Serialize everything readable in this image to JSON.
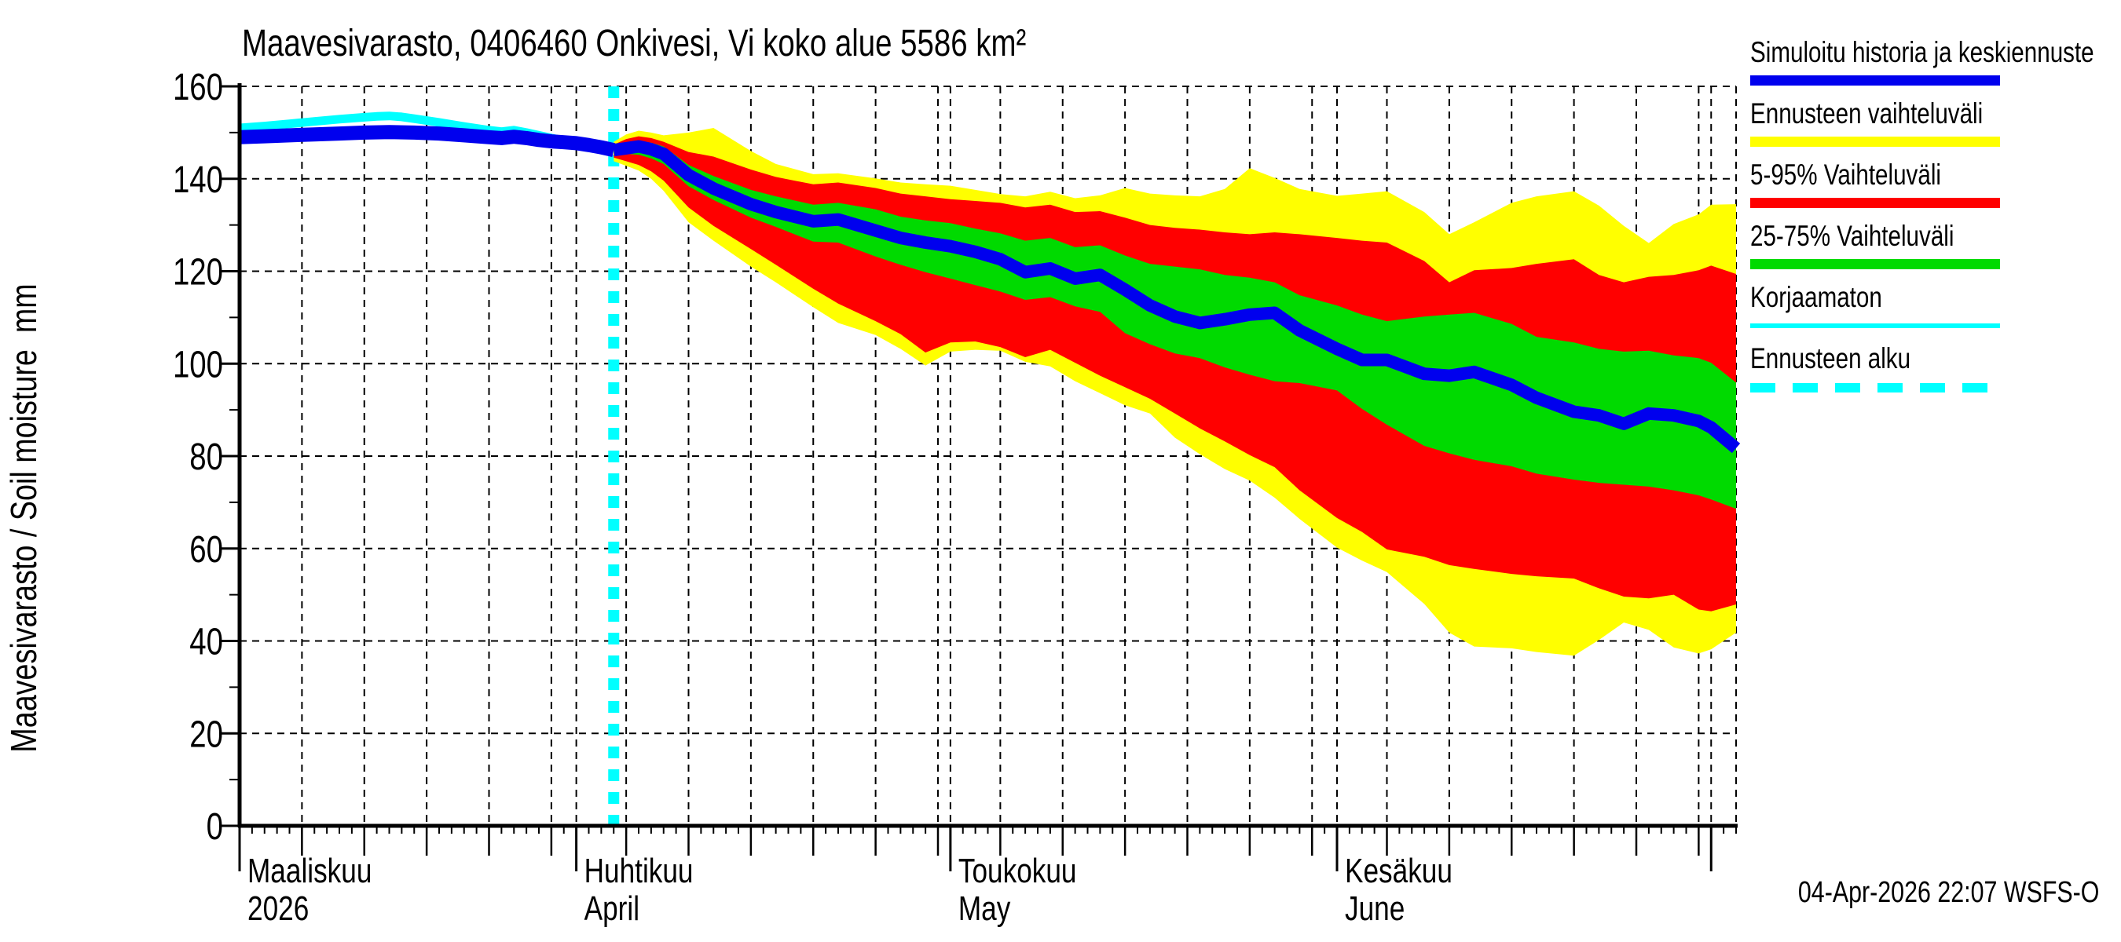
{
  "title": "Maavesivarasto, 0406460 Onkivesi, Vi koko alue 5586 km²",
  "y_axis": {
    "label": "Maavesivarasto / Soil moisture  mm"
  },
  "footer": {
    "text": "04-Apr-2026 22:07 WSFS-O"
  },
  "legend": {
    "items": [
      {
        "label": "Simuloitu historia ja keskiennuste",
        "color": "#0000ee",
        "style": "thick"
      },
      {
        "label": "Ennusteen vaihteluväli",
        "color": "#ffff00",
        "style": "thick"
      },
      {
        "label": "5-95% Vaihteluväli",
        "color": "#ff0000",
        "style": "thick"
      },
      {
        "label": "25-75% Vaihteluväli",
        "color": "#00da00",
        "style": "thick"
      },
      {
        "label": "Korjaamaton",
        "color": "#00ffff",
        "style": "thin"
      },
      {
        "label": "Ennusteen alku",
        "color": "#00ffff",
        "style": "dashed"
      }
    ]
  },
  "chart_data": {
    "type": "area",
    "title": "Maavesivarasto, 0406460 Onkivesi, Vi koko alue 5586 km²",
    "ylabel": "Maavesivarasto / Soil moisture  mm",
    "ylim": [
      0,
      160
    ],
    "y_ticks": [
      0,
      20,
      40,
      60,
      80,
      100,
      120,
      140,
      160
    ],
    "x_unit": "days since 2026-03-05",
    "x_range_days": [
      0,
      120
    ],
    "x_start_date": "2026-03-05",
    "x_end_date": "2026-07-03",
    "grid": "on",
    "legend_position": "outside-right",
    "months": [
      {
        "name_fi": "Maaliskuu",
        "name_sub": "2026",
        "day": 0
      },
      {
        "name_fi": "Huhtikuu",
        "name_sub": "April",
        "day": 27
      },
      {
        "name_fi": "Toukokuu",
        "name_sub": "May",
        "day": 57
      },
      {
        "name_fi": "Kesäkuu",
        "name_sub": "June",
        "day": 88
      }
    ],
    "x_gridline_days": [
      5,
      10,
      15,
      20,
      25,
      27,
      31,
      36,
      41,
      46,
      51,
      56,
      57,
      61,
      66,
      71,
      76,
      81,
      86,
      88,
      92,
      97,
      102,
      107,
      112,
      117,
      118,
      120
    ],
    "x_medium_tick_days": [
      5,
      10,
      15,
      20,
      25,
      31,
      36,
      41,
      46,
      51,
      56,
      61,
      66,
      71,
      76,
      81,
      86,
      92,
      97,
      102,
      107,
      112,
      117
    ],
    "x_long_tick_days": [
      0,
      27,
      57,
      88,
      118
    ],
    "colors": {
      "history_and_median": "#0000ee",
      "forecast_range": "#ffff00",
      "p5_95_range": "#ff0000",
      "p25_75_range": "#00da00",
      "uncorrected": "#00ffff",
      "forecast_start_line": "#00ffff"
    },
    "history": {
      "days": [
        0,
        2,
        4,
        6,
        8,
        10,
        12,
        14,
        16,
        18,
        20,
        21,
        22,
        23,
        24,
        25,
        26,
        27,
        28,
        29,
        30
      ],
      "mm": [
        149.0,
        149.2,
        149.4,
        149.6,
        149.8,
        150.0,
        150.1,
        150.0,
        149.8,
        149.4,
        149.0,
        148.8,
        149.1,
        148.8,
        148.4,
        148.1,
        147.9,
        147.7,
        147.3,
        146.8,
        146.2
      ]
    },
    "uncorrected": {
      "days": [
        0,
        2,
        4,
        6,
        8,
        10,
        11,
        12,
        13,
        14,
        16,
        18,
        20,
        21,
        22,
        23,
        24,
        25,
        26,
        27,
        28
      ],
      "mm": [
        151.0,
        151.4,
        151.9,
        152.4,
        152.9,
        153.3,
        153.5,
        153.6,
        153.4,
        153.0,
        152.2,
        151.3,
        150.5,
        150.2,
        150.5,
        150.0,
        149.4,
        148.8,
        148.3,
        147.6,
        146.8
      ]
    },
    "forecast": {
      "start_day": 30,
      "start_date": "2026-04-04",
      "days": [
        30,
        31,
        32,
        33,
        34,
        36,
        38,
        41,
        43,
        46,
        48,
        51,
        53,
        55,
        57,
        59,
        61,
        63,
        65,
        67,
        69,
        71,
        73,
        75,
        77,
        79,
        81,
        83,
        85,
        88,
        90,
        92,
        95,
        97,
        99,
        102,
        104,
        107,
        109,
        111,
        113,
        115,
        117,
        118,
        120
      ],
      "median": [
        146.2,
        146.6,
        147.0,
        146.4,
        145.4,
        140.8,
        137.9,
        134.5,
        132.8,
        130.8,
        131.2,
        128.8,
        127.2,
        126.2,
        125.4,
        124.2,
        122.6,
        119.8,
        120.6,
        118.4,
        119.2,
        116.0,
        112.6,
        110.2,
        108.8,
        109.6,
        110.6,
        111.0,
        107.2,
        103.2,
        100.8,
        100.8,
        97.8,
        97.4,
        98.2,
        95.4,
        92.6,
        89.6,
        88.8,
        87.0,
        89.2,
        88.8,
        87.6,
        86.2,
        81.7
      ],
      "p75": [
        146.8,
        147.6,
        148.2,
        147.8,
        147.0,
        143.0,
        140.6,
        137.6,
        136.2,
        134.4,
        134.8,
        133.4,
        131.8,
        131.0,
        130.4,
        129.2,
        128.2,
        126.6,
        127.2,
        125.2,
        125.6,
        123.4,
        121.6,
        121.0,
        120.4,
        119.2,
        118.6,
        117.6,
        114.8,
        112.6,
        110.6,
        109.2,
        110.2,
        110.6,
        111.0,
        108.6,
        105.8,
        104.6,
        103.2,
        102.6,
        102.8,
        101.8,
        101.2,
        100.2,
        95.9
      ],
      "p25": [
        145.4,
        145.4,
        145.2,
        144.4,
        143.2,
        138.4,
        135.4,
        131.6,
        129.6,
        126.4,
        126.2,
        123.2,
        121.4,
        119.8,
        118.4,
        117.0,
        115.6,
        113.8,
        114.4,
        112.4,
        111.2,
        106.6,
        104.2,
        102.2,
        101.2,
        99.2,
        97.6,
        96.2,
        95.8,
        94.2,
        90.2,
        86.8,
        82.2,
        80.6,
        79.2,
        77.8,
        76.2,
        74.9,
        74.2,
        73.8,
        73.4,
        72.6,
        71.5,
        70.6,
        68.6
      ],
      "p95": [
        147.4,
        148.6,
        149.2,
        148.8,
        148.0,
        145.8,
        144.8,
        142.0,
        140.4,
        138.8,
        139.2,
        138.0,
        136.8,
        136.2,
        135.6,
        135.2,
        134.8,
        133.8,
        134.4,
        132.8,
        133.0,
        131.6,
        130.0,
        129.4,
        129.0,
        128.4,
        128.0,
        128.4,
        128.0,
        127.2,
        126.6,
        126.2,
        122.2,
        117.6,
        120.2,
        120.7,
        121.6,
        122.6,
        119.2,
        117.6,
        118.8,
        119.2,
        120.2,
        121.2,
        119.4
      ],
      "p5": [
        144.6,
        143.8,
        143.0,
        141.6,
        139.6,
        133.8,
        129.8,
        124.8,
        121.4,
        116.2,
        113.0,
        109.2,
        106.4,
        102.4,
        104.6,
        104.8,
        103.6,
        101.4,
        103.0,
        100.2,
        97.4,
        94.9,
        92.4,
        89.2,
        86.0,
        83.2,
        80.2,
        77.6,
        72.6,
        66.6,
        63.6,
        59.8,
        58.2,
        56.4,
        55.6,
        54.5,
        54.0,
        53.5,
        51.4,
        49.6,
        49.2,
        50.0,
        46.8,
        46.4,
        47.9
      ],
      "max": [
        148.0,
        149.6,
        150.4,
        150.0,
        149.4,
        150.0,
        151.0,
        146.0,
        143.2,
        141.0,
        141.2,
        140.1,
        139.2,
        138.8,
        138.5,
        137.6,
        136.7,
        136.2,
        137.2,
        135.8,
        136.4,
        138.0,
        136.8,
        136.4,
        136.2,
        137.8,
        142.3,
        140.2,
        137.8,
        136.3,
        136.8,
        137.3,
        132.8,
        128.0,
        130.6,
        134.8,
        136.2,
        137.3,
        134.2,
        129.8,
        126.1,
        130.2,
        132.3,
        134.4,
        134.5
      ],
      "min": [
        143.8,
        142.8,
        141.8,
        140.0,
        137.4,
        130.6,
        126.6,
        121.0,
        117.6,
        112.2,
        108.8,
        106.2,
        103.2,
        99.6,
        102.6,
        103.0,
        102.8,
        100.4,
        99.4,
        96.2,
        93.6,
        91.0,
        89.2,
        84.0,
        80.4,
        77.2,
        74.7,
        71.0,
        66.4,
        60.2,
        57.4,
        54.9,
        48.0,
        41.8,
        38.8,
        38.4,
        37.6,
        36.8,
        40.2,
        44.0,
        42.4,
        38.6,
        37.3,
        38.2,
        41.8
      ]
    }
  }
}
